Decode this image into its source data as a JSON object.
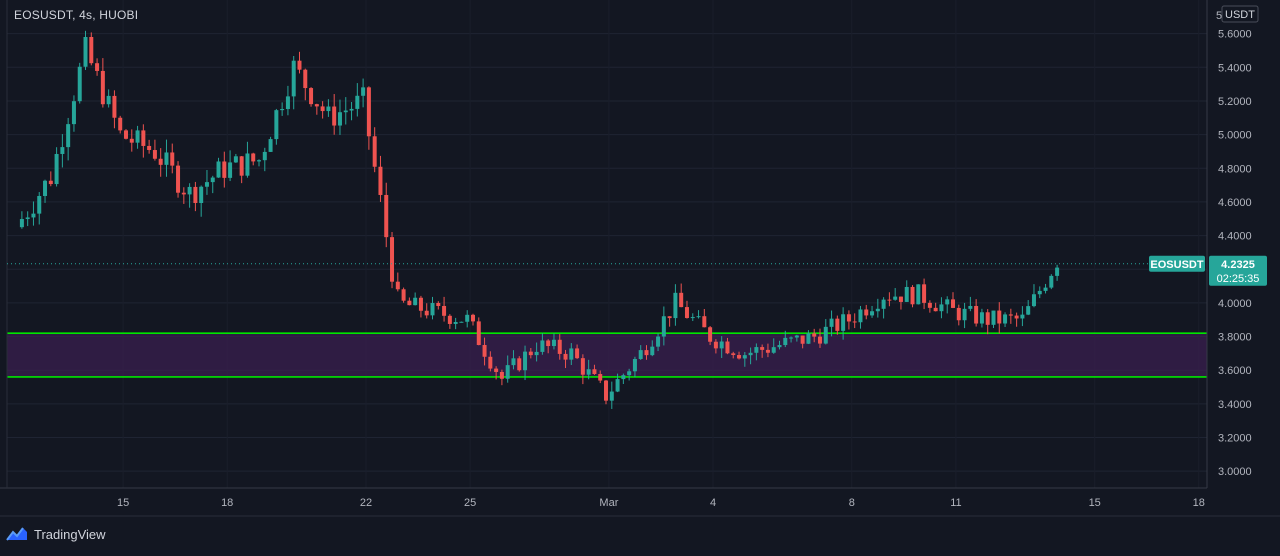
{
  "header": {
    "title": "EOSUSDT, 4s, HUOBI"
  },
  "price_axis": {
    "currency_label": "USDT",
    "top_partial_label": "5",
    "ticks": [
      "5.6000",
      "5.4000",
      "5.2000",
      "5.0000",
      "4.8000",
      "4.6000",
      "4.4000",
      "4.2000",
      "4.0000",
      "3.8000",
      "3.6000",
      "3.4000",
      "3.2000",
      "3.0000"
    ]
  },
  "time_axis": {
    "labels": [
      "15",
      "18",
      "22",
      "25",
      "Mar",
      "4",
      "8",
      "11",
      "15",
      "18"
    ]
  },
  "last_price": {
    "symbol": "EOSUSDT",
    "price": "4.2325",
    "countdown": "02:25:35",
    "value": 4.2325
  },
  "footer": {
    "brand": "TradingView"
  },
  "colors": {
    "background": "#131722",
    "up": "#26a69a",
    "down": "#ef5350",
    "zone_line": "#00e600",
    "zone_fill": "#3a1f4f",
    "price_tag": "#26a69a"
  },
  "chart_data": {
    "type": "candlestick",
    "title": "EOSUSDT, 4s, HUOBI",
    "ylabel": "USDT",
    "ylim": [
      2.9,
      5.8
    ],
    "xlim": [
      "Feb 12",
      "Mar 18"
    ],
    "grid": true,
    "x_ticks": [
      "15",
      "18",
      "22",
      "25",
      "Mar",
      "4",
      "8",
      "11",
      "15",
      "18"
    ],
    "support_zone": {
      "upper": 3.82,
      "lower": 3.56
    },
    "last_price": 4.2325,
    "series_anchors_close": [
      [
        "Feb 12",
        4.45
      ],
      [
        "Feb 13",
        4.75
      ],
      [
        "Feb 14",
        5.5
      ],
      [
        "Feb 15",
        5.0
      ],
      [
        "Feb 16",
        4.9
      ],
      [
        "Feb 17",
        4.65
      ],
      [
        "Feb 18",
        4.8
      ],
      [
        "Feb 19",
        4.85
      ],
      [
        "Feb 20",
        5.4
      ],
      [
        "Feb 21",
        5.1
      ],
      [
        "Feb 22",
        5.2
      ],
      [
        "Feb 23",
        4.0
      ],
      [
        "Feb 24",
        3.95
      ],
      [
        "Feb 25",
        3.9
      ],
      [
        "Feb 26",
        3.55
      ],
      [
        "Feb 27",
        3.75
      ],
      [
        "Feb 28",
        3.7
      ],
      [
        "Mar 1",
        3.45
      ],
      [
        "Mar 2",
        3.7
      ],
      [
        "Mar 3",
        4.0
      ],
      [
        "Mar 4",
        3.8
      ],
      [
        "Mar 5",
        3.7
      ],
      [
        "Mar 6",
        3.75
      ],
      [
        "Mar 7",
        3.8
      ],
      [
        "Mar 8",
        3.9
      ],
      [
        "Mar 9",
        4.05
      ],
      [
        "Mar 10",
        4.05
      ],
      [
        "Mar 11",
        3.95
      ],
      [
        "Mar 12",
        3.9
      ],
      [
        "Mar 13",
        3.9
      ],
      [
        "Mar 14",
        4.25
      ]
    ]
  }
}
